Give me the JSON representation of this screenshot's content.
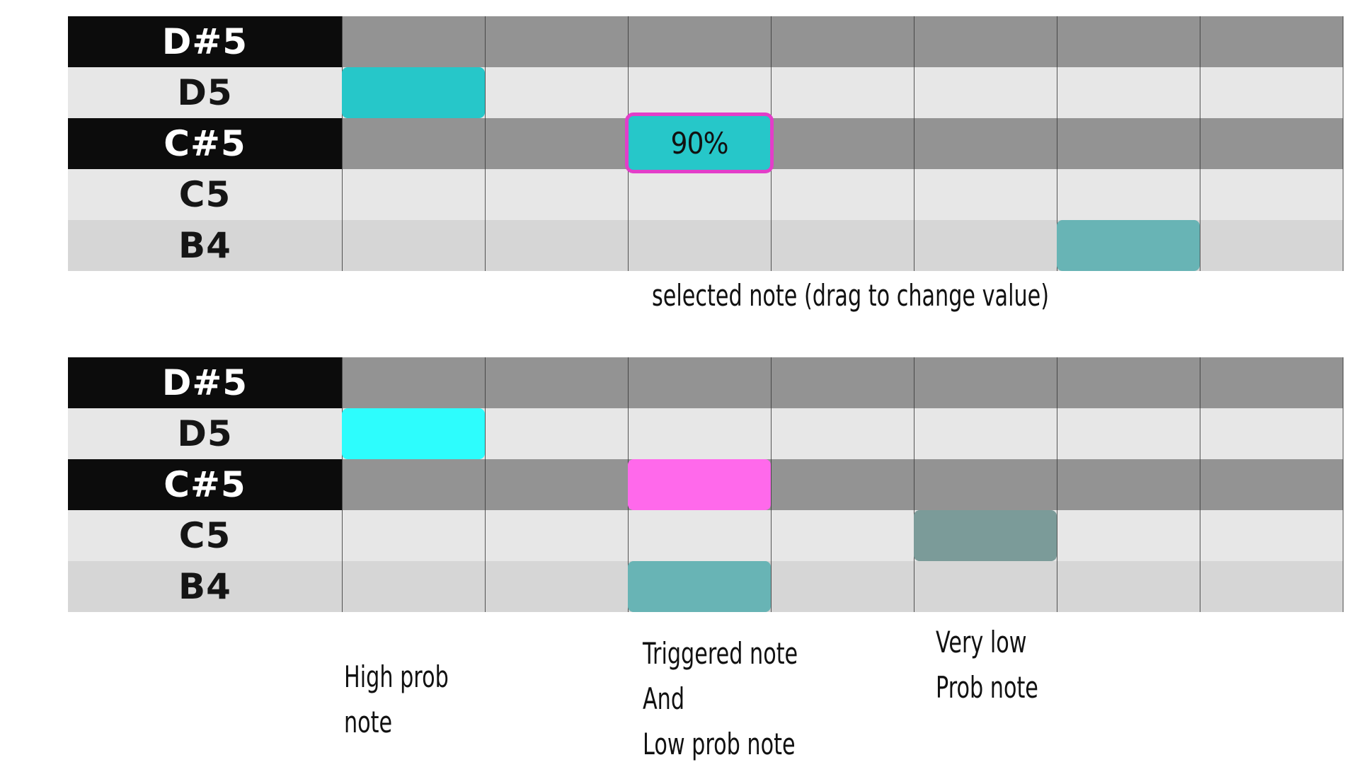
{
  "panels": [
    {
      "keys": [
        "D#5",
        "D5",
        "C#5",
        "C5",
        "B4"
      ],
      "notes": [
        {
          "row": 1,
          "col": 0,
          "color": "#26c7c9"
        },
        {
          "row": 2,
          "col": 2,
          "color": "#26c7c9",
          "label": "90%",
          "selected": true
        },
        {
          "row": 4,
          "col": 5,
          "color": "#68b4b5"
        }
      ],
      "caption": "selected note (drag to change value)"
    },
    {
      "keys": [
        "D#5",
        "D5",
        "C#5",
        "C5",
        "B4"
      ],
      "notes": [
        {
          "row": 1,
          "col": 0,
          "color": "#2dfdfd"
        },
        {
          "row": 2,
          "col": 2,
          "color": "#ff69eb"
        },
        {
          "row": 3,
          "col": 4,
          "color": "#7b9b99"
        },
        {
          "row": 4,
          "col": 2,
          "color": "#68b4b5"
        }
      ],
      "captions": [
        "High prob\nnote",
        "Triggered note\nAnd\nLow prob note",
        "Very low\nProb note"
      ]
    }
  ],
  "colors": {
    "black_key": "#0c0c0c",
    "dark_lane": "#939393",
    "light_lane": "#e7e7e7",
    "mid_lane": "#d6d6d6",
    "selection_border": "#e33ec9"
  }
}
